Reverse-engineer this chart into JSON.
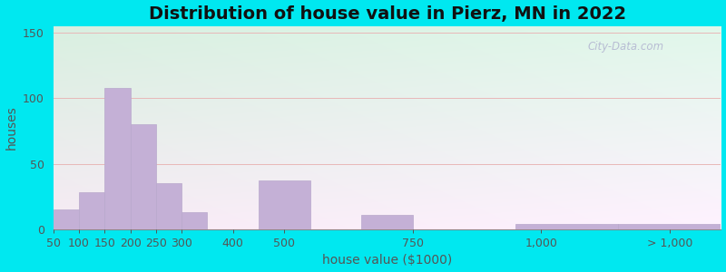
{
  "title": "Distribution of house value in Pierz, MN in 2022",
  "xlabel": "house value ($1000)",
  "ylabel": "houses",
  "bar_color": "#c4b0d6",
  "bar_edgecolor": "#b8a8cc",
  "background_outer": "#00e8f0",
  "yticks": [
    0,
    50,
    100,
    150
  ],
  "ylim": [
    0,
    155
  ],
  "bar_left_edges": [
    50,
    100,
    150,
    200,
    250,
    300,
    350,
    450,
    650,
    950,
    1150
  ],
  "bar_heights": [
    15,
    28,
    108,
    80,
    35,
    13,
    0,
    37,
    11,
    4,
    4
  ],
  "bar_widths": [
    50,
    50,
    50,
    50,
    50,
    50,
    50,
    100,
    100,
    200,
    200
  ],
  "xtick_positions": [
    50,
    100,
    150,
    200,
    250,
    300,
    400,
    500,
    750,
    1000,
    1250
  ],
  "xtick_labels": [
    "50",
    "100",
    "150",
    "200",
    "250",
    "300",
    "400",
    "500",
    "750",
    "1,000",
    "> 1,000"
  ],
  "xlim": [
    50,
    1350
  ],
  "title_fontsize": 14,
  "axis_label_fontsize": 10,
  "tick_fontsize": 9,
  "watermark": "City-Data.com"
}
